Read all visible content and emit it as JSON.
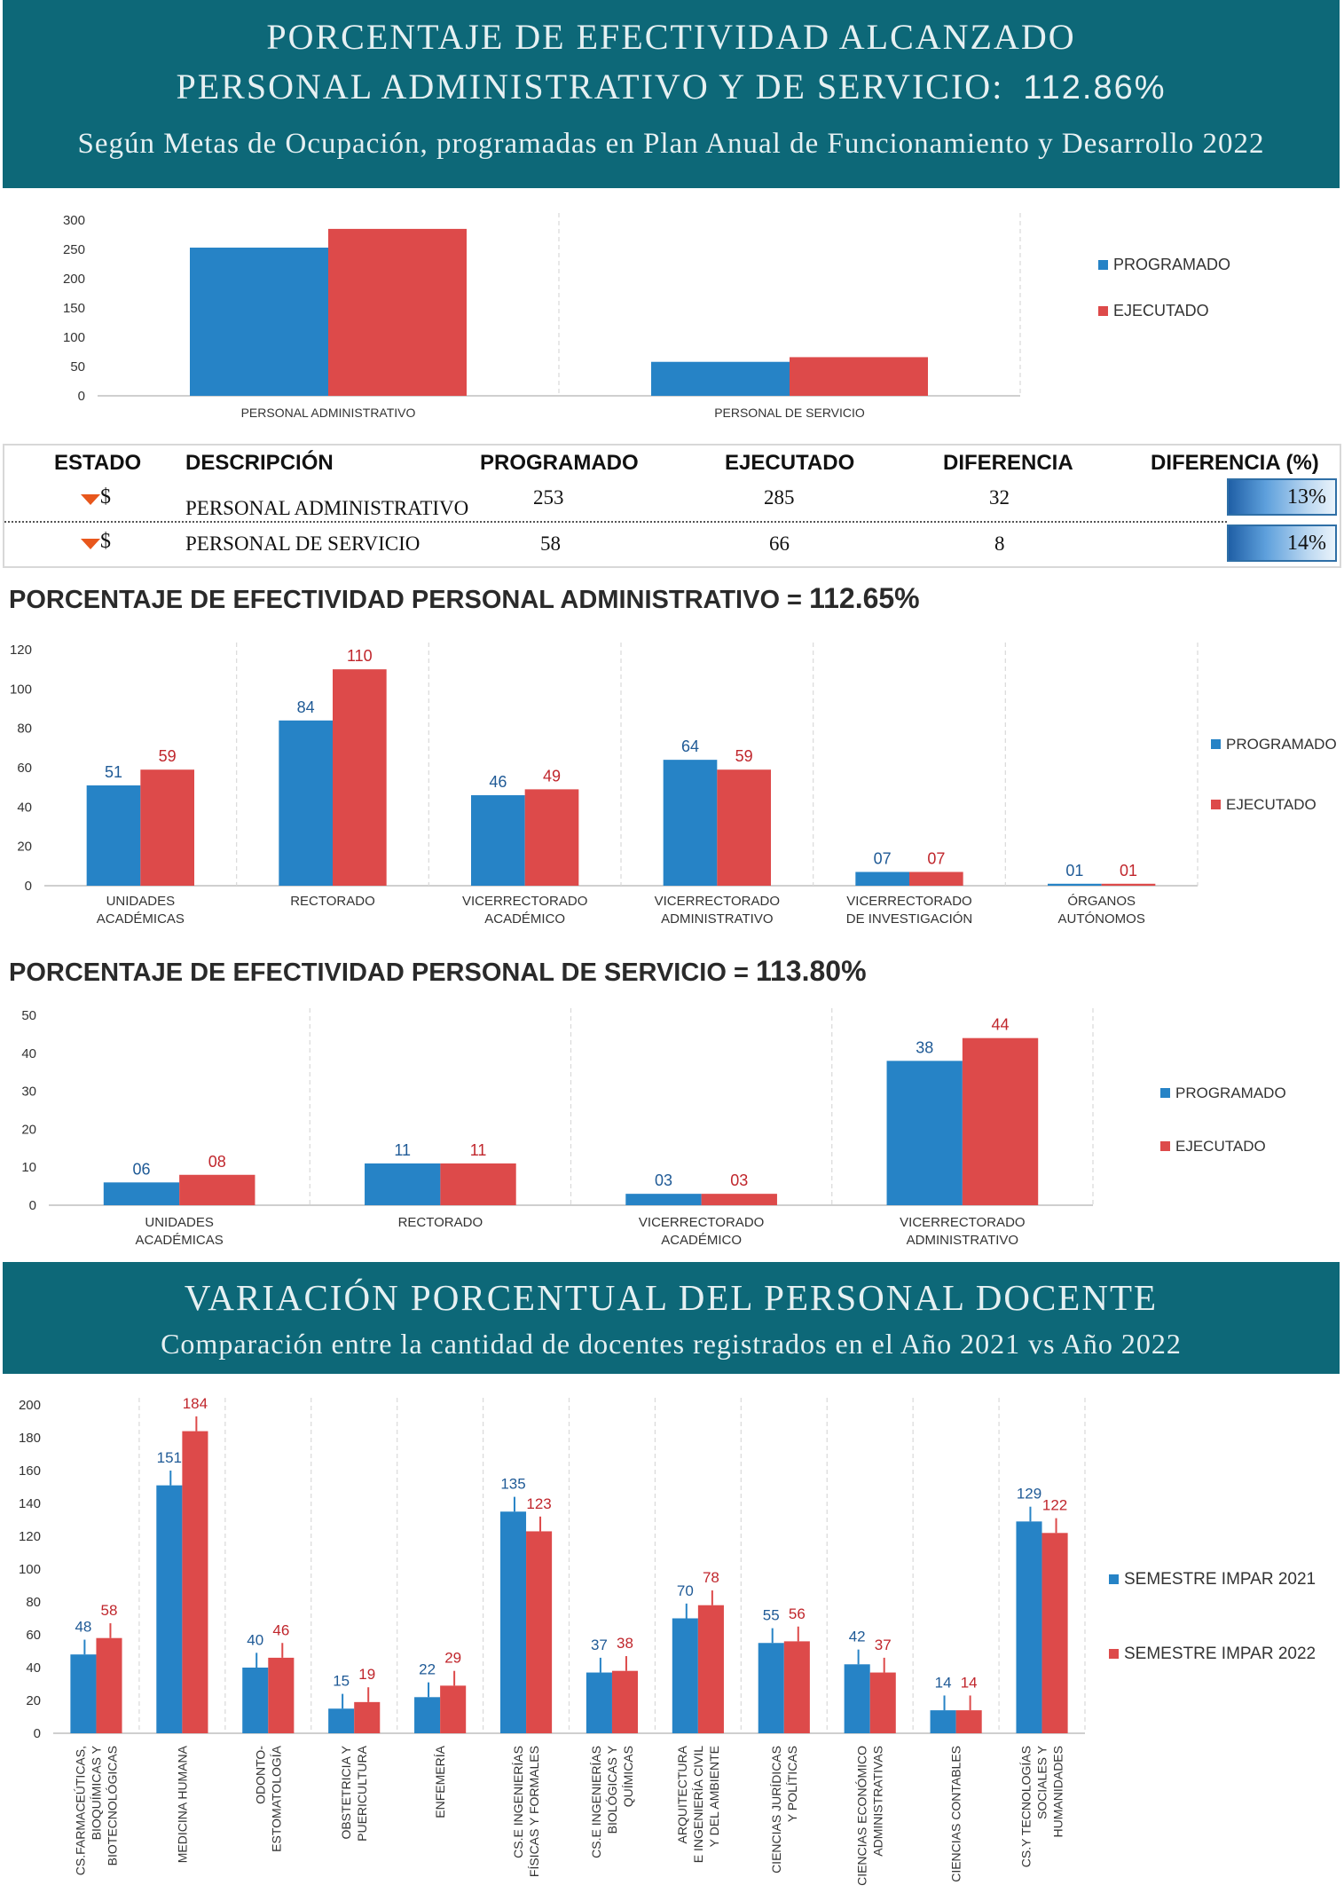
{
  "banner1": {
    "line1": "PORCENTAJE  DE  EFECTIVIDAD ALCANZADO",
    "line2": "PERSONAL ADMINISTRATIVO Y DE SERVICIO:",
    "line2_value": "112.86%",
    "line3": "Según Metas de Ocupación, programadas en Plan Anual de Funcionamiento y Desarrollo 2022"
  },
  "table": {
    "headers": [
      "ESTADO",
      "DESCRIPCIÓN",
      "PROGRAMADO",
      "EJECUTADO",
      "DIFERENCIA",
      "DIFERENCIA (%)"
    ],
    "rows": [
      {
        "estado": "$",
        "descripcion": "PERSONAL ADMINISTRATIVO",
        "programado": "253",
        "ejecutado": "285",
        "diferencia": "32",
        "diferencia_pct": "13%",
        "diferencia_pct_fill": 13
      },
      {
        "estado": "$",
        "descripcion": "PERSONAL DE SERVICIO",
        "programado": "58",
        "ejecutado": "66",
        "diferencia": "8",
        "diferencia_pct": "14%",
        "diferencia_pct_fill": 14
      }
    ]
  },
  "section2": {
    "title": "PORCENTAJE DE EFECTIVIDAD PERSONAL ADMINISTRATIVO =",
    "value": "112.65%"
  },
  "section3": {
    "title": "PORCENTAJE DE EFECTIVIDAD PERSONAL DE SERVICIO =",
    "value": "113.80%"
  },
  "banner2": {
    "line1": "VARIACIÓN PORCENTUAL DEL PERSONAL  DOCENTE",
    "line2": "Comparación entre la cantidad de docentes registrados en el Año 2021 vs  Año 2022"
  },
  "colors": {
    "blue": "#2683c6",
    "red": "#dd4a4a",
    "banner": "#0d6878",
    "label_blue": "#1f5a96",
    "label_red": "#c0262c"
  },
  "chart_data": [
    {
      "id": "chart1",
      "type": "bar",
      "categories": [
        [
          "PERSONAL ADMINISTRATIVO"
        ],
        [
          "PERSONAL DE SERVICIO"
        ]
      ],
      "series": [
        {
          "name": "PROGRAMADO",
          "values": [
            253,
            58
          ]
        },
        {
          "name": "EJECUTADO",
          "values": [
            285,
            66
          ]
        }
      ],
      "ylim": [
        0,
        300
      ],
      "yticks": [
        0,
        50,
        100,
        150,
        200,
        250,
        300
      ],
      "data_labels": false,
      "legend": "right"
    },
    {
      "id": "chart2",
      "type": "bar",
      "categories": [
        [
          "UNIDADES",
          "ACADÉMICAS"
        ],
        [
          "RECTORADO"
        ],
        [
          "VICERRECTORADO",
          "ACADÉMICO"
        ],
        [
          "VICERRECTORADO",
          "ADMINISTRATIVO"
        ],
        [
          "VICERRECTORADO",
          "DE INVESTIGACIÓN"
        ],
        [
          "ÓRGANOS",
          "AUTÓNOMOS"
        ]
      ],
      "series": [
        {
          "name": "PROGRAMADO",
          "values": [
            51,
            84,
            46,
            64,
            7,
            1
          ],
          "labels": [
            "51",
            "84",
            "46",
            "64",
            "07",
            "01"
          ]
        },
        {
          "name": "EJECUTADO",
          "values": [
            59,
            110,
            49,
            59,
            7,
            1
          ],
          "labels": [
            "59",
            "110",
            "49",
            "59",
            "07",
            "01"
          ]
        }
      ],
      "ylim": [
        0,
        120
      ],
      "yticks": [
        0,
        20,
        40,
        60,
        80,
        100,
        120
      ],
      "data_labels": true,
      "legend": "right"
    },
    {
      "id": "chart3",
      "type": "bar",
      "categories": [
        [
          "UNIDADES",
          "ACADÉMICAS"
        ],
        [
          "RECTORADO"
        ],
        [
          "VICERRECTORADO",
          "ACADÉMICO"
        ],
        [
          "VICERRECTORADO",
          "ADMINISTRATIVO"
        ]
      ],
      "series": [
        {
          "name": "PROGRAMADO",
          "values": [
            6,
            11,
            3,
            38
          ],
          "labels": [
            "06",
            "11",
            "03",
            "38"
          ]
        },
        {
          "name": "EJECUTADO",
          "values": [
            8,
            11,
            3,
            44
          ],
          "labels": [
            "08",
            "11",
            "03",
            "44"
          ]
        }
      ],
      "ylim": [
        0,
        50
      ],
      "yticks": [
        0,
        10,
        20,
        30,
        40,
        50
      ],
      "data_labels": true,
      "legend": "right"
    },
    {
      "id": "chart4",
      "type": "bar",
      "categories": [
        [
          "CS.FARMACEÚTICAS,",
          "BIOQUÍMICAS Y",
          "BIOTECNOLÓGICAS"
        ],
        [
          "MEDICINA HUMANA"
        ],
        [
          "ODONTO-",
          "ESTOMATOLOGÍA"
        ],
        [
          "OBSTETRICIA Y",
          "PUERICULTURA"
        ],
        [
          "ENFEMERÍA"
        ],
        [
          "CS.E INGENIERÍAS",
          "FÍSICAS Y FORMALES"
        ],
        [
          "CS.E INGENIERÍAS",
          "BIOLÓGICAS Y",
          "QUÍMICAS"
        ],
        [
          "ARQUITECTURA",
          "E INGENIERÍA CIVIL",
          "Y DEL AMBIENTE"
        ],
        [
          "CIENCIAS JURÍDICAS",
          "Y POLÍTICAS"
        ],
        [
          "CIENCIAS ECONÓMICO",
          "ADMINISTRATIVAS"
        ],
        [
          "CIENCIAS CONTABLES"
        ],
        [
          "CS.Y TECNOLOGÍAS",
          "SOCIALES Y",
          "HUMANIDADES"
        ]
      ],
      "series": [
        {
          "name": "SEMESTRE IMPAR 2021",
          "values": [
            48,
            151,
            40,
            15,
            22,
            135,
            37,
            70,
            55,
            42,
            14,
            129
          ],
          "labels": [
            "48",
            "151",
            "40",
            "15",
            "22",
            "135",
            "37",
            "70",
            "55",
            "42",
            "14",
            "129"
          ]
        },
        {
          "name": "SEMESTRE IMPAR 2022",
          "values": [
            58,
            184,
            46,
            19,
            29,
            123,
            38,
            78,
            56,
            37,
            14,
            122
          ],
          "labels": [
            "58",
            "184",
            "46",
            "19",
            "29",
            "123",
            "38",
            "78",
            "56",
            "37",
            "14",
            "122"
          ]
        }
      ],
      "ylim": [
        0,
        200
      ],
      "yticks": [
        0,
        20,
        40,
        60,
        80,
        100,
        120,
        140,
        160,
        180,
        200
      ],
      "data_labels": true,
      "error_bars": true,
      "rotated_categories": true,
      "legend": "right"
    }
  ]
}
